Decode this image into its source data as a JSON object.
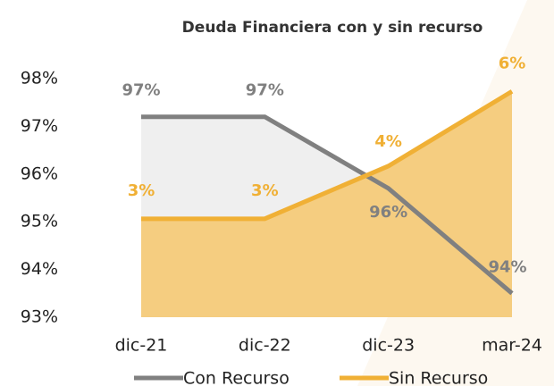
{
  "chart_data": {
    "type": "line",
    "title": "Deuda Financiera con y sin recurso",
    "categories": [
      "dic-21",
      "dic-22",
      "dic-23",
      "mar-24"
    ],
    "series": [
      {
        "name": "Con Recurso",
        "color": "#808080",
        "fill": "#efefef",
        "values": [
          97.2,
          97.2,
          95.7,
          93.5
        ],
        "value_labels": [
          "97%",
          "97%",
          "96%",
          "94%"
        ]
      },
      {
        "name": "Sin Recurso",
        "color": "#f0b035",
        "fill": "#f5cd80",
        "axis": "y2",
        "values": [
          3.0,
          3.0,
          4.2,
          5.9
        ],
        "value_labels": [
          "3%",
          "3%",
          "4%",
          "6%"
        ]
      }
    ],
    "ylim": [
      93,
      98
    ],
    "yticks": [
      {
        "value": 93,
        "label": "93%"
      },
      {
        "value": 94,
        "label": "94%"
      },
      {
        "value": 95,
        "label": "95%"
      },
      {
        "value": 96,
        "label": "96%"
      },
      {
        "value": 97,
        "label": "97%"
      },
      {
        "value": 98,
        "label": "98%"
      }
    ],
    "y2lim": [
      0.76,
      6.19
    ],
    "legend": "bottom"
  }
}
